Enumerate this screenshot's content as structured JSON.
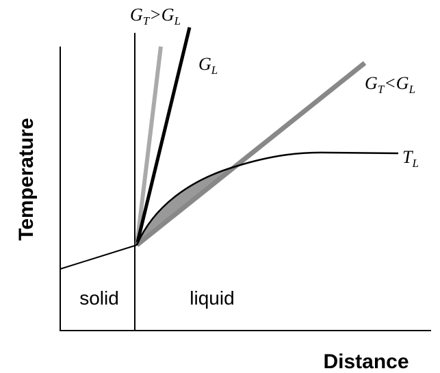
{
  "axes": {
    "y_label": "Temperature",
    "x_label": "Distance"
  },
  "regions": {
    "solid": "solid",
    "liquid": "liquid"
  },
  "curve_labels": [
    {
      "parts": [
        "G",
        "T",
        ">G",
        "L"
      ]
    },
    {
      "parts": [
        "G",
        "L"
      ]
    },
    {
      "parts": [
        "G",
        "T",
        "<G",
        "L"
      ]
    },
    {
      "parts": [
        "T",
        "L"
      ]
    }
  ]
}
